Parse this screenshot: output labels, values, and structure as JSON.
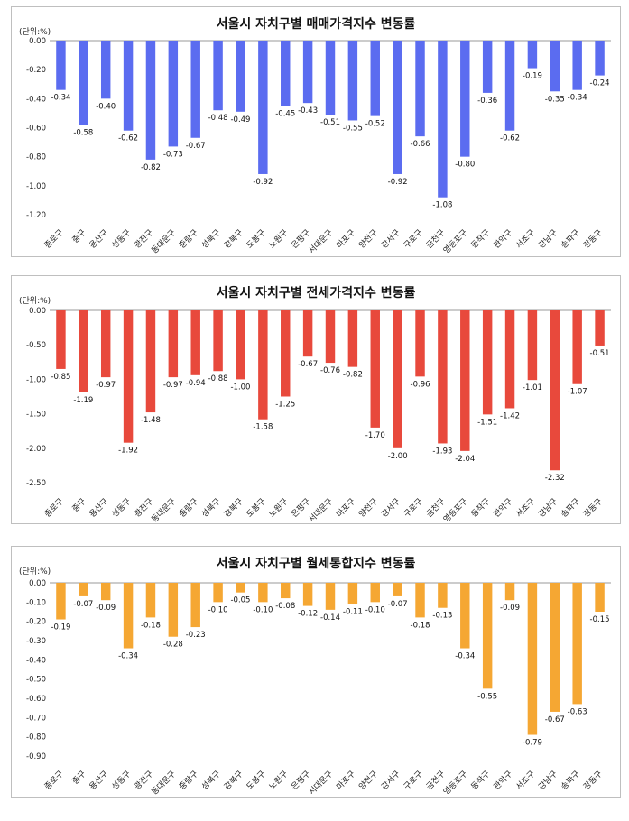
{
  "chart_data": [
    {
      "type": "bar",
      "title": "서울시 자치구별 매매가격지수 변동률",
      "unit_label": "(단위:%)",
      "color": "#5b6cf0",
      "ylim": [
        -1.2,
        0
      ],
      "tick_step": 0.2,
      "tick_decimals": 2,
      "categories": [
        "종로구",
        "중구",
        "용산구",
        "성동구",
        "광진구",
        "동대문구",
        "중랑구",
        "성북구",
        "강북구",
        "도봉구",
        "노원구",
        "은평구",
        "서대문구",
        "마포구",
        "양천구",
        "강서구",
        "구로구",
        "금천구",
        "영등포구",
        "동작구",
        "관악구",
        "서초구",
        "강남구",
        "송파구",
        "강동구"
      ],
      "values": [
        -0.34,
        -0.58,
        -0.4,
        -0.62,
        -0.82,
        -0.73,
        -0.67,
        -0.48,
        -0.49,
        -0.92,
        -0.45,
        -0.43,
        -0.51,
        -0.55,
        -0.52,
        -0.92,
        -0.66,
        -1.08,
        -0.8,
        -0.36,
        -0.62,
        -0.19,
        -0.35,
        -0.34,
        -0.24
      ]
    },
    {
      "type": "bar",
      "title": "서울시 자치구별 전세가격지수 변동률",
      "unit_label": "(단위:%)",
      "color": "#e8493c",
      "ylim": [
        -2.5,
        0
      ],
      "tick_step": 0.5,
      "tick_decimals": 2,
      "categories": [
        "종로구",
        "중구",
        "용산구",
        "성동구",
        "광진구",
        "동대문구",
        "중랑구",
        "성북구",
        "강북구",
        "도봉구",
        "노원구",
        "은평구",
        "서대문구",
        "마포구",
        "양천구",
        "강서구",
        "구로구",
        "금천구",
        "영등포구",
        "동작구",
        "관악구",
        "서초구",
        "강남구",
        "송파구",
        "강동구"
      ],
      "values": [
        -0.85,
        -1.19,
        -0.97,
        -1.92,
        -1.48,
        -0.97,
        -0.94,
        -0.88,
        -1.0,
        -1.58,
        -1.25,
        -0.67,
        -0.76,
        -0.82,
        -1.7,
        -2.0,
        -0.96,
        -1.93,
        -2.04,
        -1.51,
        -1.42,
        -1.01,
        -2.32,
        -1.07,
        -0.51
      ]
    },
    {
      "type": "bar",
      "title": "서울시 자치구별 월세통합지수 변동률",
      "unit_label": "(단위:%)",
      "color": "#f5a733",
      "ylim": [
        -0.9,
        0
      ],
      "tick_step": 0.1,
      "tick_decimals": 2,
      "categories": [
        "종로구",
        "중구",
        "용산구",
        "성동구",
        "광진구",
        "동대문구",
        "중랑구",
        "성북구",
        "강북구",
        "도봉구",
        "노원구",
        "은평구",
        "서대문구",
        "마포구",
        "양천구",
        "강서구",
        "구로구",
        "금천구",
        "영등포구",
        "동작구",
        "관악구",
        "서초구",
        "강남구",
        "송파구",
        "강동구"
      ],
      "values": [
        -0.19,
        -0.07,
        -0.09,
        -0.34,
        -0.18,
        -0.28,
        -0.23,
        -0.1,
        -0.05,
        -0.1,
        -0.08,
        -0.12,
        -0.14,
        -0.11,
        -0.1,
        -0.07,
        -0.18,
        -0.13,
        -0.34,
        -0.55,
        -0.09,
        -0.79,
        -0.67,
        -0.63,
        -0.15
      ]
    }
  ]
}
